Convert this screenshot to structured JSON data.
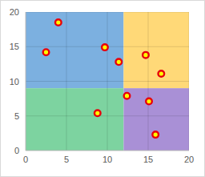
{
  "chart_data": {
    "type": "scatter",
    "x": [
      4.0,
      2.5,
      9.7,
      11.4,
      14.7,
      16.6,
      12.4,
      15.1,
      8.8,
      15.9
    ],
    "series": [
      {
        "color": "#e8000b",
        "marker": "circle",
        "values": [
          18.5,
          14.2,
          14.9,
          12.8,
          13.8,
          11.1,
          7.9,
          7.1,
          5.4,
          2.3
        ]
      }
    ],
    "regions": [
      {
        "xlim": [
          0,
          12
        ],
        "ylim": [
          9,
          20
        ],
        "color": "#7cb0e0"
      },
      {
        "xlim": [
          12,
          20
        ],
        "ylim": [
          9,
          20
        ],
        "color": "#ffd978"
      },
      {
        "xlim": [
          0,
          12
        ],
        "ylim": [
          0,
          9
        ],
        "color": "#7dd3a0"
      },
      {
        "xlim": [
          12,
          20
        ],
        "ylim": [
          0,
          9
        ],
        "color": "#a990d6"
      }
    ],
    "xlim": [
      0,
      20
    ],
    "xticks": [
      0,
      5,
      10,
      15,
      20
    ],
    "ylim": [
      0,
      20
    ],
    "yticks": [
      0,
      5,
      10,
      15,
      20
    ],
    "grid": true
  }
}
